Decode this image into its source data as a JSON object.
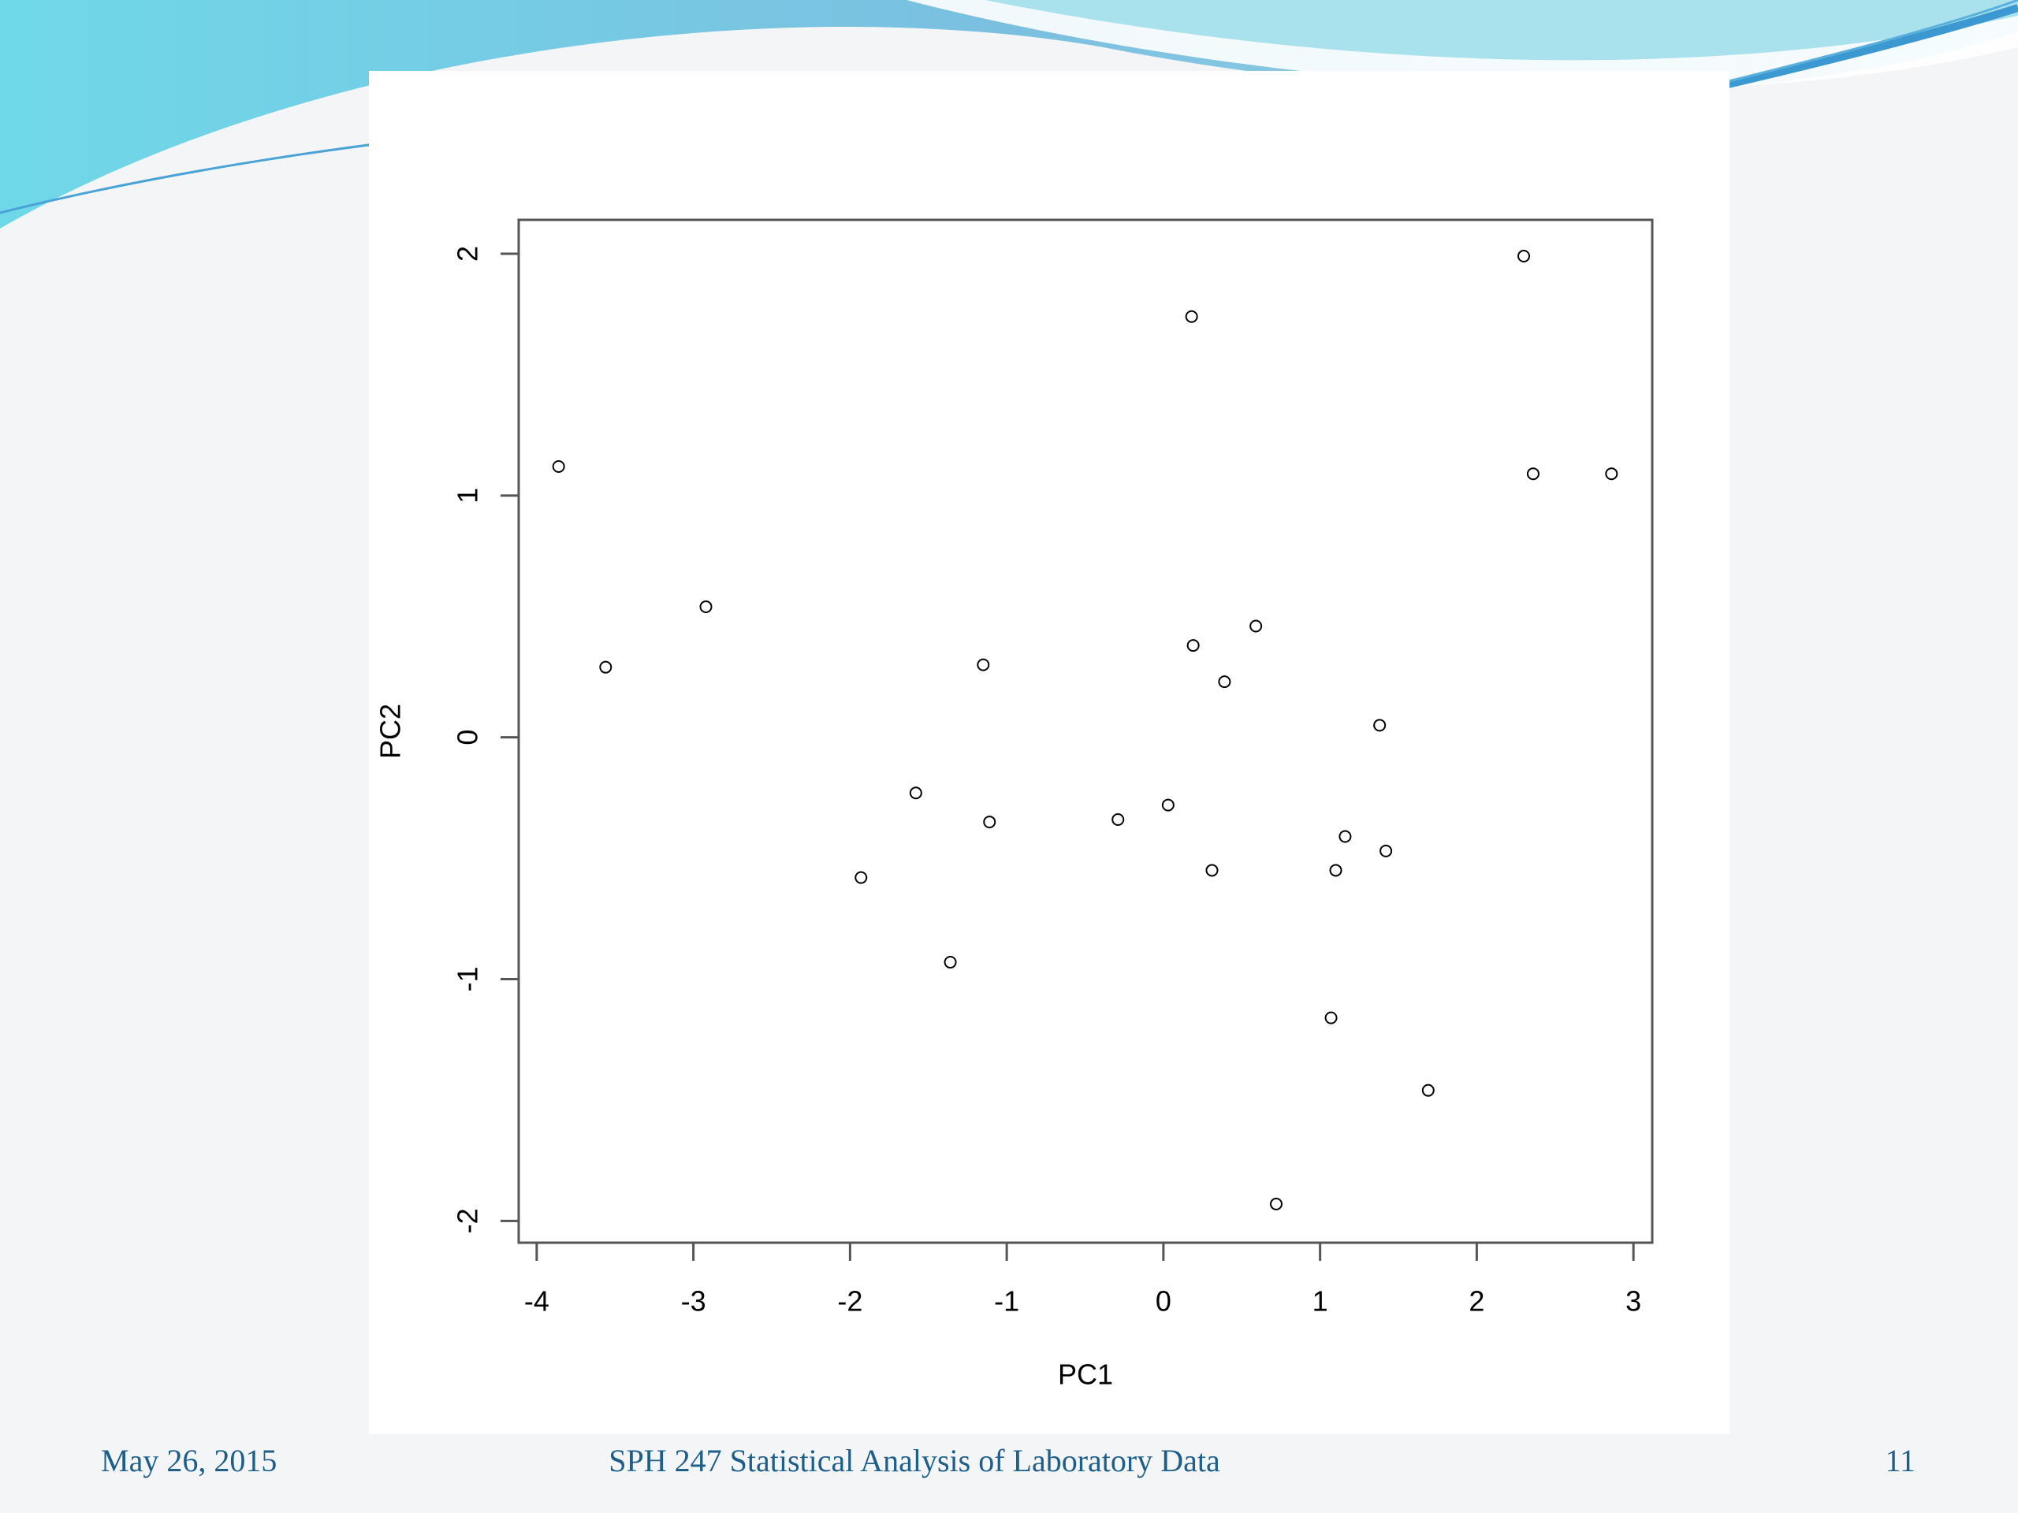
{
  "chart_data": {
    "type": "scatter",
    "xlabel": "PC1",
    "ylabel": "PC2",
    "x": [
      -3.86,
      -3.56,
      -2.92,
      -1.58,
      -1.93,
      -1.15,
      -1.11,
      -1.36,
      -0.29,
      0.03,
      0.18,
      0.19,
      0.31,
      0.39,
      0.59,
      0.72,
      1.07,
      1.1,
      1.16,
      1.38,
      1.42,
      1.69,
      2.3,
      2.36,
      2.86
    ],
    "y": [
      1.12,
      0.29,
      0.54,
      -0.23,
      -0.58,
      0.3,
      -0.35,
      -0.93,
      -0.34,
      -0.28,
      1.74,
      0.38,
      -0.55,
      0.23,
      0.46,
      -1.93,
      -1.16,
      -0.55,
      -0.41,
      0.05,
      -0.47,
      -1.46,
      1.99,
      1.09,
      1.09
    ],
    "color": "#000000",
    "xlim": [
      -4.115,
      3.12
    ],
    "ylim": [
      -2.09,
      2.14
    ],
    "xticks": [
      -4,
      -3,
      -2,
      -1,
      0,
      1,
      2,
      3
    ],
    "yticks": [
      -2,
      -1,
      0,
      1,
      2
    ]
  },
  "footer": {
    "date": "May 26, 2015",
    "course": "SPH 247 Statistical Analysis of Laboratory Data",
    "page": "11"
  }
}
